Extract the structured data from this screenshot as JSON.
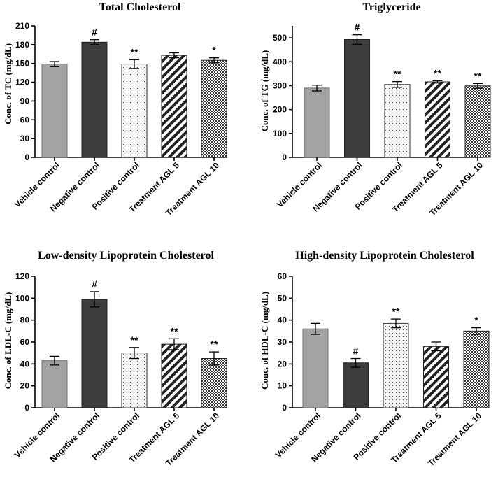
{
  "chart_data": [
    {
      "type": "bar",
      "title": "Total Cholesterol",
      "ylabel": "Conc. of TC (mg/dL)",
      "ylim": [
        0,
        210
      ],
      "yticks": [
        0,
        30,
        60,
        90,
        120,
        150,
        180,
        210
      ],
      "categories": [
        "Vehicle control",
        "Negative control",
        "Positive control",
        "Treatment AGL 5",
        "Treatment AGL 10"
      ],
      "values": [
        149,
        184,
        149,
        163,
        155
      ],
      "errors": [
        4,
        4,
        7,
        4,
        4
      ],
      "annotations": [
        "",
        "#",
        "**",
        "",
        "*"
      ],
      "patterns": [
        "solid-gray",
        "solid-dark",
        "dots",
        "diagonal",
        "crosshatch"
      ]
    },
    {
      "type": "bar",
      "title": "Triglyceride",
      "ylabel": "Conc. of TG (mg/dL)",
      "ylim": [
        0,
        550
      ],
      "yticks": [
        0,
        100,
        200,
        300,
        400,
        500
      ],
      "categories": [
        "Vehicle control",
        "Negative control",
        "Positive control",
        "Treatment AGL 5",
        "Treatment AGL 10"
      ],
      "values": [
        290,
        493,
        305,
        316,
        299
      ],
      "errors": [
        12,
        20,
        12,
        5,
        10
      ],
      "annotations": [
        "",
        "#",
        "**",
        "**",
        "**"
      ],
      "patterns": [
        "solid-gray",
        "solid-dark",
        "dots",
        "diagonal",
        "crosshatch"
      ]
    },
    {
      "type": "bar",
      "title": "Low-density Lipoprotein Cholesterol",
      "ylabel": "Conc. of LDL-C (mg/dL)",
      "ylim": [
        0,
        120
      ],
      "yticks": [
        0,
        20,
        40,
        60,
        80,
        100,
        120
      ],
      "categories": [
        "Vehicle control",
        "Negative control",
        "Positive control",
        "Treatment AGL 5",
        "Treatment AGL 10"
      ],
      "values": [
        43,
        99,
        50,
        58,
        45
      ],
      "errors": [
        4,
        7,
        5,
        5,
        6
      ],
      "annotations": [
        "",
        "#",
        "**",
        "**",
        "**"
      ],
      "patterns": [
        "solid-gray",
        "solid-dark",
        "dots",
        "diagonal",
        "crosshatch"
      ]
    },
    {
      "type": "bar",
      "title": "High-density Lipoprotein Cholesterol",
      "ylabel": "Conc. of HDL-C (mg/dL)",
      "ylim": [
        0,
        60
      ],
      "yticks": [
        0,
        10,
        20,
        30,
        40,
        50,
        60
      ],
      "categories": [
        "Vehicle control",
        "Negative control",
        "Positive control",
        "Treatment AGL 5",
        "Treatment AGL 10"
      ],
      "values": [
        36,
        20.5,
        38.5,
        28,
        35
      ],
      "errors": [
        2.5,
        2,
        2,
        2,
        1.5
      ],
      "annotations": [
        "",
        "#",
        "**",
        "",
        "*"
      ],
      "patterns": [
        "solid-gray",
        "solid-dark",
        "dots",
        "diagonal",
        "crosshatch"
      ]
    }
  ]
}
